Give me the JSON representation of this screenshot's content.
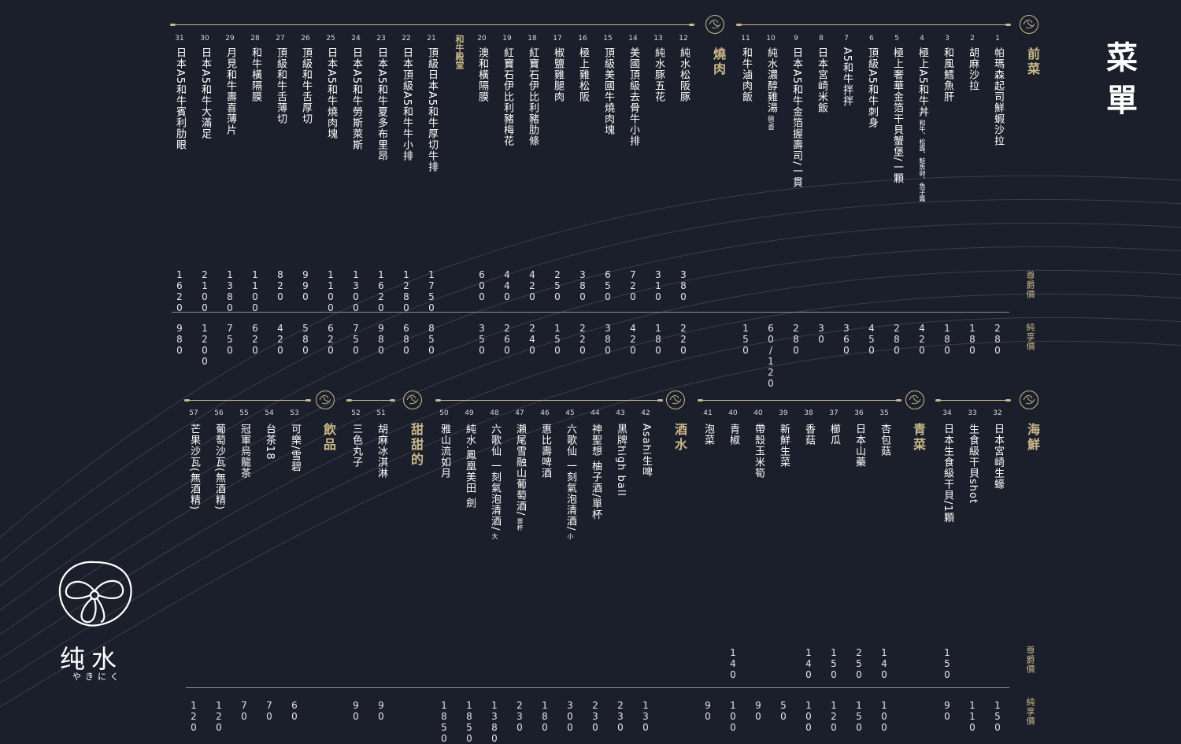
{
  "title": "菜單",
  "brand": {
    "name": "纯水",
    "subtitle": "やきにく"
  },
  "price_labels": {
    "premium": "尊爵價",
    "regular": "純享價"
  },
  "sections": [
    {
      "key": "appetizer",
      "name": "前菜",
      "items": [
        {
          "no": "1",
          "name": "帕瑪森起司鮮蝦沙拉",
          "regular": "280"
        },
        {
          "no": "2",
          "name": "胡麻沙拉",
          "regular": "180"
        },
        {
          "no": "3",
          "name": "和風鱈魚肝",
          "regular": "180"
        },
        {
          "no": "4",
          "name": "極上A5和牛丼",
          "note": "和牛、松露、鮭魚卵、魚子醬",
          "regular": "420"
        },
        {
          "no": "5",
          "name": "極上奢華金箔干貝蟹堡/一顆",
          "regular": "280"
        },
        {
          "no": "6",
          "name": "頂級A5和牛刺身",
          "regular": "450"
        },
        {
          "no": "7",
          "name": "A5和牛拌拌",
          "regular": "360"
        },
        {
          "no": "8",
          "name": "日本宮崎米飯",
          "regular": "30"
        },
        {
          "no": "9",
          "name": "日本A5和牛金箔握壽司/一貫",
          "regular": "280"
        },
        {
          "no": "10",
          "name": "純水濃醇雞湯",
          "note": "碗/壺",
          "regular": "60/120"
        },
        {
          "no": "11",
          "name": "和牛滷肉飯",
          "regular": "150"
        }
      ]
    },
    {
      "key": "yakiniku",
      "name": "燒肉",
      "items": [
        {
          "no": "12",
          "name": "純水松阪豚",
          "premium": "380",
          "regular": "220"
        },
        {
          "no": "13",
          "name": "純水豚五花",
          "premium": "310",
          "regular": "180"
        },
        {
          "no": "14",
          "name": "美國頂級去骨牛小排",
          "premium": "720",
          "regular": "420"
        },
        {
          "no": "15",
          "name": "頂級美國牛燒肉塊",
          "premium": "650",
          "regular": "380"
        },
        {
          "no": "16",
          "name": "極上雞松阪",
          "premium": "380",
          "regular": "220"
        },
        {
          "no": "17",
          "name": "椒鹽雞腿肉",
          "premium": "250",
          "regular": "150"
        },
        {
          "no": "18",
          "name": "紅寶石伊比利豬肋條",
          "premium": "420",
          "regular": "240"
        },
        {
          "no": "19",
          "name": "紅寶石伊比利豬梅花",
          "premium": "440",
          "regular": "260"
        },
        {
          "no": "20",
          "name": "澳和橫隔膜",
          "premium": "600",
          "regular": "350"
        }
      ]
    },
    {
      "key": "wagyu",
      "name": "和牛殿堂",
      "items": [
        {
          "no": "21",
          "name": "頂級日本A5和牛厚切牛排",
          "premium": "1750",
          "regular": "850"
        },
        {
          "no": "22",
          "name": "日本頂級A5和牛牛小排",
          "premium": "1280",
          "regular": "680"
        },
        {
          "no": "23",
          "name": "日本A5和牛夏多布里昂",
          "premium": "1620",
          "regular": "980"
        },
        {
          "no": "24",
          "name": "日本A5和牛勞斯萊斯",
          "premium": "1300",
          "regular": "750"
        },
        {
          "no": "25",
          "name": "日本A5和牛燒肉塊",
          "premium": "1100",
          "regular": "620"
        },
        {
          "no": "26",
          "name": "頂級和牛舌厚切",
          "premium": "990",
          "regular": "580"
        },
        {
          "no": "27",
          "name": "頂級和牛舌薄切",
          "premium": "820",
          "regular": "420"
        },
        {
          "no": "28",
          "name": "和牛橫隔膜",
          "premium": "1100",
          "regular": "620"
        },
        {
          "no": "29",
          "name": "月見和牛壽喜薄片",
          "premium": "1380",
          "regular": "750"
        },
        {
          "no": "30",
          "name": "日本A5和牛大滿足",
          "premium": "2100",
          "regular": "1200"
        },
        {
          "no": "31",
          "name": "日本A5和牛賓利肋眼",
          "premium": "1620",
          "regular": "980"
        }
      ]
    },
    {
      "key": "seafood",
      "name": "海鮮",
      "items": [
        {
          "no": "32",
          "name": "日本宮崎生蠔",
          "regular": "150"
        },
        {
          "no": "33",
          "name": "生食級干貝shot",
          "regular": "110"
        },
        {
          "no": "34",
          "name": "日本生食級干貝/1顆",
          "premium": "150",
          "regular": "90"
        }
      ]
    },
    {
      "key": "vegetable",
      "name": "青菜",
      "items": [
        {
          "no": "35",
          "name": "杏包菇",
          "premium": "140",
          "regular": "100"
        },
        {
          "no": "36",
          "name": "日本山藥",
          "premium": "250",
          "regular": "150"
        },
        {
          "no": "37",
          "name": "櫛瓜",
          "premium": "150",
          "regular": "120"
        },
        {
          "no": "38",
          "name": "香菇",
          "premium": "140",
          "regular": "100"
        },
        {
          "no": "39",
          "name": "新鮮生菜",
          "regular": "50"
        },
        {
          "no": "40",
          "name": "帶殼玉米筍",
          "regular": "90"
        },
        {
          "no": "40",
          "name": "青椒",
          "premium": "140",
          "regular": "100"
        },
        {
          "no": "41",
          "name": "泡菜",
          "regular": "90"
        }
      ]
    },
    {
      "key": "alcohol",
      "name": "酒水",
      "items": [
        {
          "no": "42",
          "name": "Asahi生啤",
          "regular": "130"
        },
        {
          "no": "43",
          "name": "黑牌high ball",
          "regular": "230"
        },
        {
          "no": "44",
          "name": "神聖想 柚子酒/單杯",
          "regular": "230"
        },
        {
          "no": "45",
          "name": "六歌仙 一刻氣泡清酒/",
          "note": "小",
          "regular": "300"
        },
        {
          "no": "46",
          "name": "惠比壽啤酒",
          "regular": "180"
        },
        {
          "no": "47",
          "name": "瀨尾雪融山葡萄酒/",
          "note": "單杯",
          "regular": "230"
        },
        {
          "no": "48",
          "name": "六歌仙 一刻氣泡清酒/",
          "note": "大",
          "regular": "1380"
        },
        {
          "no": "49",
          "name": "純水.鳳凰美田 劍",
          "regular": "1850"
        },
        {
          "no": "50",
          "name": "雅山流如月",
          "regular": "1850"
        }
      ]
    },
    {
      "key": "dessert",
      "name": "甜甜的",
      "items": [
        {
          "no": "51",
          "name": "胡麻冰淇淋",
          "regular": "90"
        },
        {
          "no": "52",
          "name": "三色丸子",
          "regular": "90"
        }
      ]
    },
    {
      "key": "drinks",
      "name": "飲品",
      "items": [
        {
          "no": "53",
          "name": "可樂/雪碧",
          "regular": "60"
        },
        {
          "no": "54",
          "name": "台茶18",
          "regular": "70"
        },
        {
          "no": "55",
          "name": "冠軍烏龍茶",
          "regular": "70"
        },
        {
          "no": "56",
          "name": "葡萄沙瓦(無酒精)",
          "regular": "120"
        },
        {
          "no": "57",
          "name": "芒果沙瓦(無酒精)",
          "regular": "120"
        }
      ]
    }
  ]
}
